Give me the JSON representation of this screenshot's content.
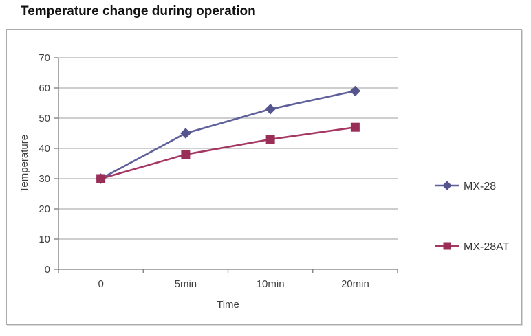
{
  "header": {
    "title": "Temperature change during operation"
  },
  "chart_data": {
    "type": "line",
    "title": "Temperature change during operation",
    "categories": [
      "0",
      "5min",
      "10min",
      "20min"
    ],
    "series": [
      {
        "name": "MX-28",
        "values": [
          30,
          45,
          53,
          59
        ],
        "marker": "diamond",
        "color": "#5F5F9C",
        "marker_color": "#55558E"
      },
      {
        "name": "MX-28AT",
        "values": [
          30,
          38,
          43,
          47
        ],
        "marker": "square",
        "color": "#A53763",
        "marker_color": "#992E56"
      }
    ],
    "xlabel": "Time",
    "ylabel": "Temperature",
    "ylim": [
      0,
      70
    ],
    "yticks": [
      0,
      10,
      20,
      30,
      40,
      50,
      60,
      70
    ],
    "grid": "horizontal",
    "legend_position": "right",
    "colors": {
      "gridline": "#9E9E9E",
      "axis": "#7A7A7A",
      "tick_label": "#3F3F3F",
      "legend_label": "#333333",
      "frame_border": "#ABABAB",
      "background": "#FFFFFF"
    }
  }
}
